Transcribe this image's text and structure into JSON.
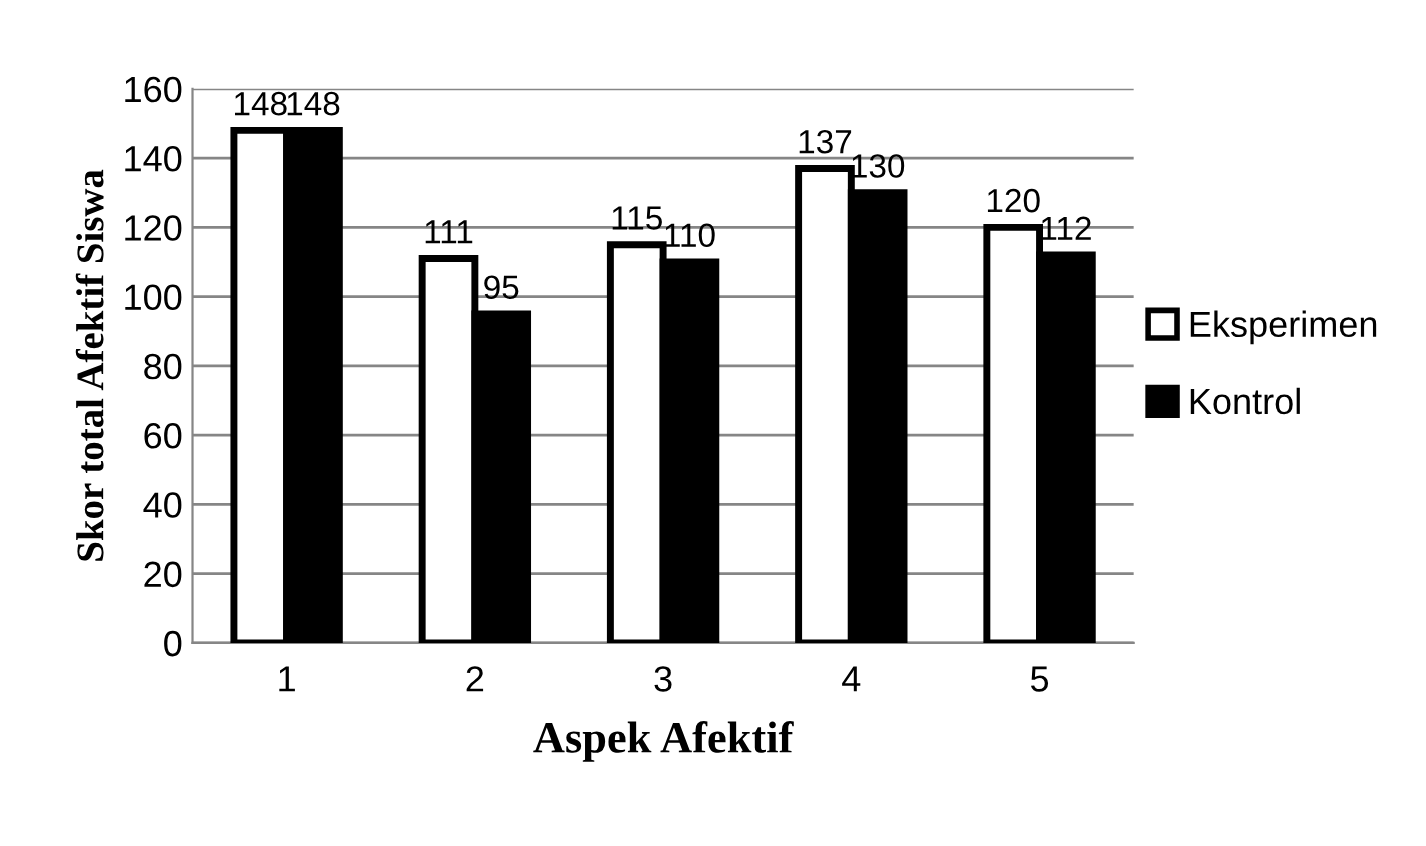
{
  "chart_data": {
    "type": "bar",
    "xlabel": "Aspek Afektif",
    "ylabel": "Skor total Afektif Siswa",
    "categories": [
      "1",
      "2",
      "3",
      "4",
      "5"
    ],
    "series": [
      {
        "name": "Eksperimen",
        "color": "#ffffff",
        "values": [
          148,
          111,
          115,
          137,
          120
        ]
      },
      {
        "name": "Kontrol",
        "color": "#000000",
        "values": [
          148,
          95,
          110,
          130,
          112
        ]
      }
    ],
    "ylim": [
      0,
      160
    ],
    "yticks": [
      0,
      20,
      40,
      60,
      80,
      100,
      120,
      140,
      160
    ],
    "grid": "y",
    "legend": "right",
    "data_labels": true
  }
}
